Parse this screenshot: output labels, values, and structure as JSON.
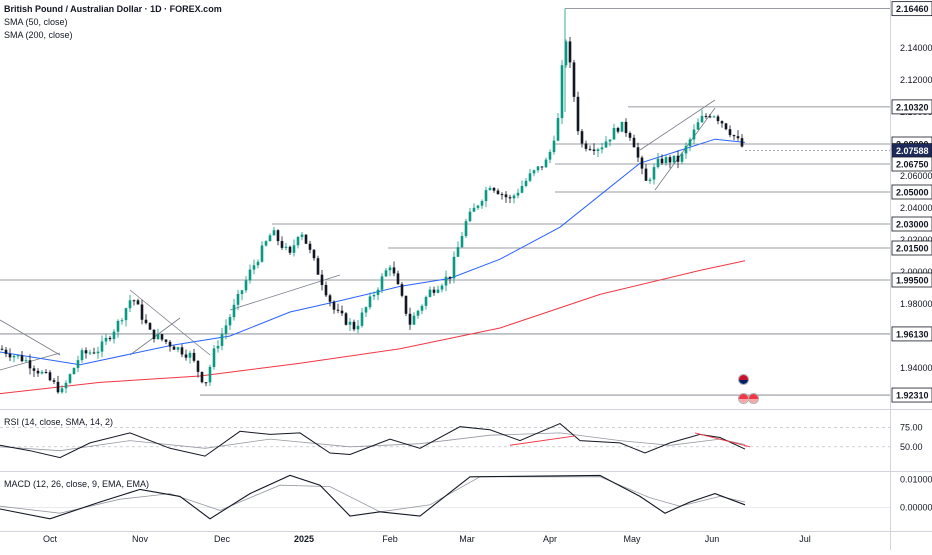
{
  "chart_data": {
    "type": "candlestick",
    "title": "British Pound / Australian Dollar · 1D · FOREX.com",
    "indicators": [
      "SMA (50, close)",
      "SMA (200, close)"
    ],
    "x_tick_labels": [
      "Oct",
      "Nov",
      "Dec",
      "2025",
      "Feb",
      "Mar",
      "Apr",
      "May",
      "Jun",
      "Jul"
    ],
    "y_tick_labels": [
      "1.94000",
      "1.96000",
      "1.98000",
      "2.00000",
      "2.02000",
      "2.04000",
      "2.06000",
      "2.08000",
      "2.10000",
      "2.12000",
      "2.14000"
    ],
    "ylim": [
      1.915,
      2.17
    ],
    "level_labels": [
      "2.16460",
      "2.10320",
      "2.08000",
      "2.07588",
      "2.06750",
      "2.05000",
      "2.03000",
      "2.01500",
      "1.99500",
      "1.96130",
      "1.92310"
    ],
    "current_price": 2.07588,
    "sma50_line": [
      {
        "x": 0,
        "y": 1.95
      },
      {
        "x": 80,
        "y": 1.942
      },
      {
        "x": 170,
        "y": 1.954
      },
      {
        "x": 230,
        "y": 1.96
      },
      {
        "x": 290,
        "y": 1.975
      },
      {
        "x": 340,
        "y": 1.982
      },
      {
        "x": 400,
        "y": 1.991
      },
      {
        "x": 450,
        "y": 1.996
      },
      {
        "x": 500,
        "y": 2.008
      },
      {
        "x": 560,
        "y": 2.028
      },
      {
        "x": 600,
        "y": 2.048
      },
      {
        "x": 640,
        "y": 2.068
      },
      {
        "x": 680,
        "y": 2.076
      },
      {
        "x": 715,
        "y": 2.083
      },
      {
        "x": 745,
        "y": 2.081
      }
    ],
    "sma200_line": [
      {
        "x": 0,
        "y": 1.924
      },
      {
        "x": 100,
        "y": 1.931
      },
      {
        "x": 200,
        "y": 1.935
      },
      {
        "x": 300,
        "y": 1.943
      },
      {
        "x": 400,
        "y": 1.952
      },
      {
        "x": 500,
        "y": 1.965
      },
      {
        "x": 600,
        "y": 1.986
      },
      {
        "x": 700,
        "y": 2.001
      },
      {
        "x": 745,
        "y": 2.007
      }
    ],
    "rsi": {
      "label": "RSI (14, close, SMA, 14, 2)",
      "tick_labels": [
        "75.00",
        "50.00"
      ],
      "ylim": [
        20,
        95
      ],
      "values": [
        {
          "x": 0,
          "y": 52
        },
        {
          "x": 30,
          "y": 45
        },
        {
          "x": 60,
          "y": 36
        },
        {
          "x": 90,
          "y": 55
        },
        {
          "x": 130,
          "y": 68
        },
        {
          "x": 170,
          "y": 48
        },
        {
          "x": 205,
          "y": 38
        },
        {
          "x": 240,
          "y": 70
        },
        {
          "x": 270,
          "y": 66
        },
        {
          "x": 300,
          "y": 68
        },
        {
          "x": 330,
          "y": 42
        },
        {
          "x": 350,
          "y": 40
        },
        {
          "x": 390,
          "y": 60
        },
        {
          "x": 420,
          "y": 48
        },
        {
          "x": 460,
          "y": 76
        },
        {
          "x": 490,
          "y": 72
        },
        {
          "x": 520,
          "y": 58
        },
        {
          "x": 560,
          "y": 80
        },
        {
          "x": 580,
          "y": 58
        },
        {
          "x": 620,
          "y": 55
        },
        {
          "x": 645,
          "y": 42
        },
        {
          "x": 670,
          "y": 55
        },
        {
          "x": 700,
          "y": 66
        },
        {
          "x": 720,
          "y": 62
        },
        {
          "x": 745,
          "y": 47
        }
      ],
      "signal": [
        {
          "x": 0,
          "y": 50
        },
        {
          "x": 60,
          "y": 45
        },
        {
          "x": 130,
          "y": 58
        },
        {
          "x": 205,
          "y": 48
        },
        {
          "x": 270,
          "y": 60
        },
        {
          "x": 350,
          "y": 50
        },
        {
          "x": 420,
          "y": 54
        },
        {
          "x": 490,
          "y": 65
        },
        {
          "x": 560,
          "y": 68
        },
        {
          "x": 620,
          "y": 58
        },
        {
          "x": 670,
          "y": 52
        },
        {
          "x": 720,
          "y": 60
        },
        {
          "x": 745,
          "y": 53
        }
      ]
    },
    "macd": {
      "label": "MACD (12, 26, close, 9, EMA, EMA)",
      "tick_labels": [
        "0.01000",
        "0.00000"
      ],
      "ylim": [
        -0.008,
        0.012
      ],
      "values": [
        {
          "x": 0,
          "y": -0.0005
        },
        {
          "x": 50,
          "y": -0.004
        },
        {
          "x": 100,
          "y": 0.002
        },
        {
          "x": 140,
          "y": 0.0065
        },
        {
          "x": 180,
          "y": 0.004
        },
        {
          "x": 210,
          "y": -0.004
        },
        {
          "x": 250,
          "y": 0.005
        },
        {
          "x": 290,
          "y": 0.0115
        },
        {
          "x": 320,
          "y": 0.008
        },
        {
          "x": 350,
          "y": -0.003
        },
        {
          "x": 380,
          "y": -0.0015
        },
        {
          "x": 420,
          "y": -0.003
        },
        {
          "x": 470,
          "y": 0.011
        },
        {
          "x": 600,
          "y": 0.0115
        },
        {
          "x": 640,
          "y": 0.004
        },
        {
          "x": 665,
          "y": -0.002
        },
        {
          "x": 690,
          "y": 0.002
        },
        {
          "x": 715,
          "y": 0.005
        },
        {
          "x": 745,
          "y": 0.001
        }
      ],
      "signal": [
        {
          "x": 0,
          "y": 0.0005
        },
        {
          "x": 60,
          "y": -0.002
        },
        {
          "x": 120,
          "y": 0.003
        },
        {
          "x": 170,
          "y": 0.005
        },
        {
          "x": 220,
          "y": -0.001
        },
        {
          "x": 280,
          "y": 0.008
        },
        {
          "x": 330,
          "y": 0.0075
        },
        {
          "x": 380,
          "y": -0.0015
        },
        {
          "x": 430,
          "y": 0.001
        },
        {
          "x": 480,
          "y": 0.011
        },
        {
          "x": 600,
          "y": 0.011
        },
        {
          "x": 650,
          "y": 0.0035
        },
        {
          "x": 680,
          "y": 0.0005
        },
        {
          "x": 720,
          "y": 0.004
        },
        {
          "x": 745,
          "y": 0.002
        }
      ]
    },
    "colors": {
      "up": "#089981",
      "down": "#131722",
      "sma50": "#2962ff",
      "sma200": "#f23645",
      "level_line": "#9598a1",
      "price_box": "#1e2a5a",
      "rsi_line": "#131722",
      "signal_line": "#9598a1"
    }
  }
}
